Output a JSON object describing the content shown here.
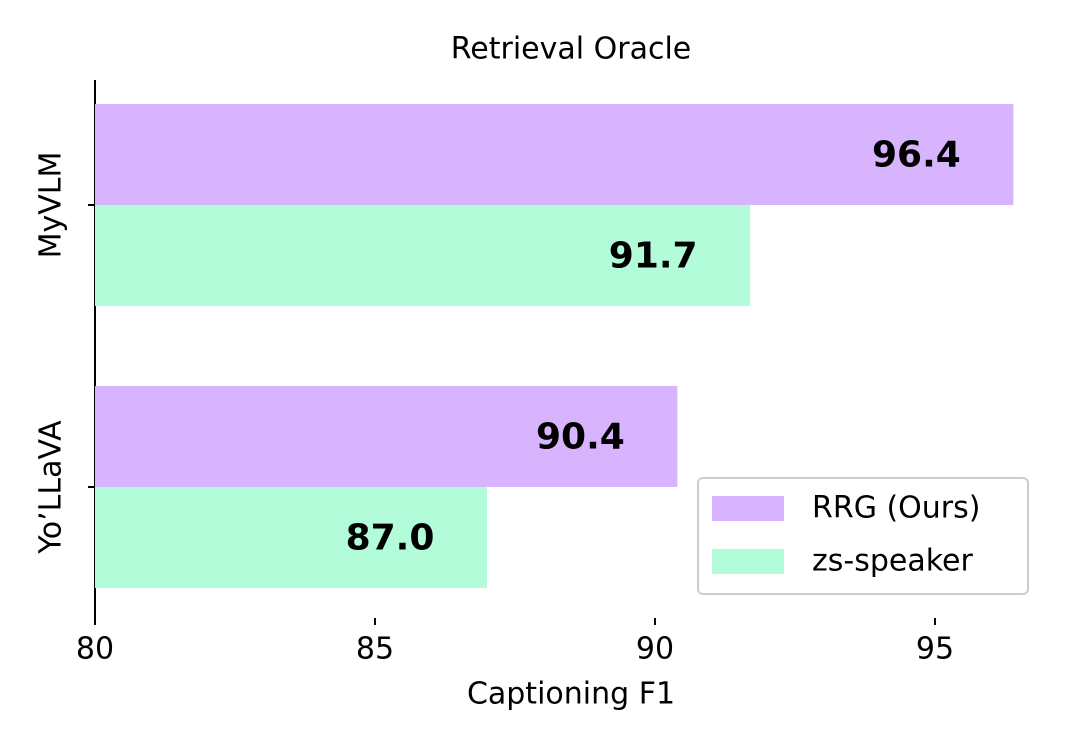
{
  "chart_data": {
    "type": "hbar",
    "title": "Retrieval Oracle",
    "x_label": "Captioning F1",
    "categories": [
      "MyVLM",
      "Yo’LLaVA"
    ],
    "series": [
      {
        "name": "RRG (Ours)",
        "color": "#d8b4fe",
        "values": [
          96.4,
          90.4
        ],
        "value_labels": [
          "96.4",
          "90.4"
        ]
      },
      {
        "name": "zs-speaker",
        "color": "#b3fcd9",
        "values": [
          91.7,
          87.0
        ],
        "value_labels": [
          "91.7",
          "87.0"
        ]
      }
    ],
    "xlim": [
      80,
      96.4
    ],
    "xticks": [
      80,
      85,
      90,
      95
    ],
    "legend": "lower right"
  }
}
